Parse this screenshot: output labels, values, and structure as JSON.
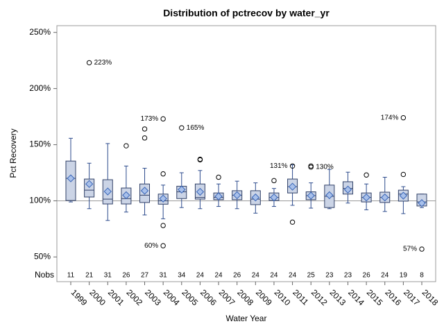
{
  "chart_data": {
    "type": "box",
    "title": "Distribution of pctrecov by water_yr",
    "y_label": "Pct Recovery",
    "x_label": "Water Year",
    "nobs_label": "Nobs",
    "ylim": [
      28,
      256
    ],
    "yticks": [
      {
        "value": 50,
        "label": "50%"
      },
      {
        "value": 100,
        "label": "100%"
      },
      {
        "value": 150,
        "label": "150%"
      },
      {
        "value": 200,
        "label": "200%"
      },
      {
        "value": 250,
        "label": "250%"
      }
    ],
    "reference_line": 100,
    "box_color": "#cbd4e6",
    "edge_color": "#2f3f66",
    "whisker_color": "#2b4a8c",
    "mean_color": "#a8c0ea",
    "categories": [
      "1999",
      "2000",
      "2001",
      "2002",
      "2003",
      "2004",
      "2005",
      "2006",
      "2007",
      "2008",
      "2009",
      "2010",
      "2011",
      "2012",
      "2013",
      "2014",
      "2015",
      "2016",
      "2017",
      "2018"
    ],
    "nobs": [
      11,
      21,
      31,
      26,
      27,
      31,
      34,
      24,
      24,
      26,
      24,
      24,
      24,
      25,
      23,
      23,
      26,
      24,
      19,
      8
    ],
    "boxes": [
      {
        "low": 99,
        "q1": 100.3,
        "median": 120,
        "q3": 135.4,
        "high": 155.7,
        "mean": 120,
        "outliers": []
      },
      {
        "low": 93,
        "q1": 103.4,
        "median": 109.5,
        "q3": 119.4,
        "high": 133.5,
        "mean": 115,
        "outliers": [
          {
            "value": 223,
            "label": "223%"
          }
        ]
      },
      {
        "low": 82.5,
        "q1": 97.2,
        "median": 101.5,
        "q3": 118.8,
        "high": 151,
        "mean": 108.3,
        "outliers": []
      },
      {
        "low": 90,
        "q1": 97.2,
        "median": 102,
        "q3": 111.4,
        "high": 131,
        "mean": 105,
        "outliers": [
          149
        ]
      },
      {
        "low": 87.4,
        "q1": 98.5,
        "median": 105,
        "q3": 115,
        "high": 129,
        "mean": 109,
        "outliers": [
          164,
          156
        ]
      },
      {
        "low": 84,
        "q1": 97,
        "median": 100,
        "q3": 106,
        "high": 114,
        "mean": 102,
        "outliers": [
          {
            "value": 173,
            "label": "173%"
          },
          124,
          78,
          {
            "value": 60,
            "label": "60%"
          }
        ]
      },
      {
        "low": 94,
        "q1": 102,
        "median": 108,
        "q3": 113,
        "high": 125,
        "mean": 110,
        "outliers": [
          {
            "value": 165,
            "label": "165%"
          }
        ]
      },
      {
        "low": 93,
        "q1": 101.5,
        "median": 103,
        "q3": 115,
        "high": 127,
        "mean": 108,
        "outliers": [
          137,
          136.5
        ]
      },
      {
        "low": 95,
        "q1": 101,
        "median": 103,
        "q3": 107,
        "high": 115,
        "mean": 104,
        "outliers": [
          121
        ]
      },
      {
        "low": 93,
        "q1": 101,
        "median": 105,
        "q3": 109,
        "high": 117.5,
        "mean": 105,
        "outliers": []
      },
      {
        "low": 89,
        "q1": 96.6,
        "median": 101.5,
        "q3": 109,
        "high": 116,
        "mean": 103,
        "outliers": []
      },
      {
        "low": 95,
        "q1": 100.3,
        "median": 103,
        "q3": 107,
        "high": 111,
        "mean": 103,
        "outliers": [
          118
        ]
      },
      {
        "low": 96,
        "q1": 107,
        "median": 112.6,
        "q3": 119.4,
        "high": 132,
        "mean": 112.6,
        "outliers": [
          {
            "value": 131,
            "label": "131%"
          },
          81
        ]
      },
      {
        "low": 93.5,
        "q1": 101,
        "median": 104.6,
        "q3": 108,
        "high": 116,
        "mean": 104.6,
        "outliers": [
          131,
          {
            "value": 130,
            "label": "130%"
          }
        ]
      },
      {
        "low": 93,
        "q1": 94,
        "median": 104,
        "q3": 114,
        "high": 128,
        "mean": 105,
        "outliers": []
      },
      {
        "low": 98,
        "q1": 106,
        "median": 111,
        "q3": 117,
        "high": 125.5,
        "mean": 110,
        "outliers": []
      },
      {
        "low": 92,
        "q1": 99,
        "median": 103,
        "q3": 107,
        "high": 115,
        "mean": 103,
        "outliers": [
          123
        ]
      },
      {
        "low": 90.5,
        "q1": 98.5,
        "median": 103,
        "q3": 107.7,
        "high": 121,
        "mean": 103,
        "outliers": []
      },
      {
        "low": 88.6,
        "q1": 99.7,
        "median": 106,
        "q3": 109.5,
        "high": 112.6,
        "mean": 104.6,
        "outliers": [
          {
            "value": 174,
            "label": "174%"
          },
          123.5
        ]
      },
      {
        "low": 94,
        "q1": 95.4,
        "median": 99,
        "q3": 106,
        "high": 106,
        "mean": 98,
        "outliers": [
          {
            "value": 57,
            "label": "57%"
          }
        ]
      }
    ]
  }
}
